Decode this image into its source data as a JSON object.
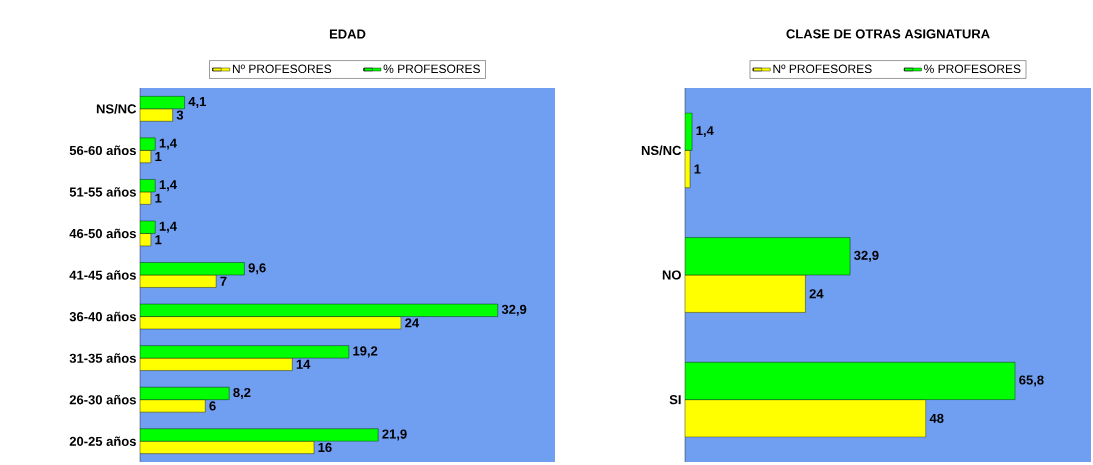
{
  "chart_data": [
    {
      "type": "bar",
      "orientation": "horizontal",
      "title": "EDAD",
      "legend": "top",
      "categories": [
        "NS/NC",
        "56-60  años",
        "51-55  años",
        "46-50  años",
        "41-45  años",
        "36-40  años",
        "31-35  años",
        "26-30  años",
        "20-25  años"
      ],
      "series": [
        {
          "name": "Nº PROFESORES",
          "color": "#ffff00",
          "values": [
            3,
            1,
            1,
            1,
            7,
            24,
            14,
            6,
            16
          ],
          "value_labels": [
            "3",
            "1",
            "1",
            "1",
            "7",
            "24",
            "14",
            "6",
            "16"
          ]
        },
        {
          "name": "% PROFESORES",
          "color": "#00ff00",
          "values": [
            4.1,
            1.4,
            1.4,
            1.4,
            9.6,
            32.9,
            19.2,
            8.2,
            21.9
          ],
          "value_labels": [
            "4,1",
            "1,4",
            "1,4",
            "1,4",
            "9,6",
            "32,9",
            "19,2",
            "8,2",
            "21,9"
          ]
        }
      ]
    },
    {
      "type": "bar",
      "orientation": "horizontal",
      "title": "CLASE DE OTRAS ASIGNATURA",
      "legend": "top",
      "categories": [
        "NS/NC",
        "NO",
        "SI"
      ],
      "series": [
        {
          "name": "Nº PROFESORES",
          "color": "#ffff00",
          "values": [
            1,
            24,
            48
          ],
          "value_labels": [
            "1",
            "24",
            "48"
          ]
        },
        {
          "name": "% PROFESORES",
          "color": "#00ff00",
          "values": [
            1.4,
            32.9,
            65.8
          ],
          "value_labels": [
            "1,4",
            "32,9",
            "65,8"
          ]
        }
      ]
    }
  ]
}
